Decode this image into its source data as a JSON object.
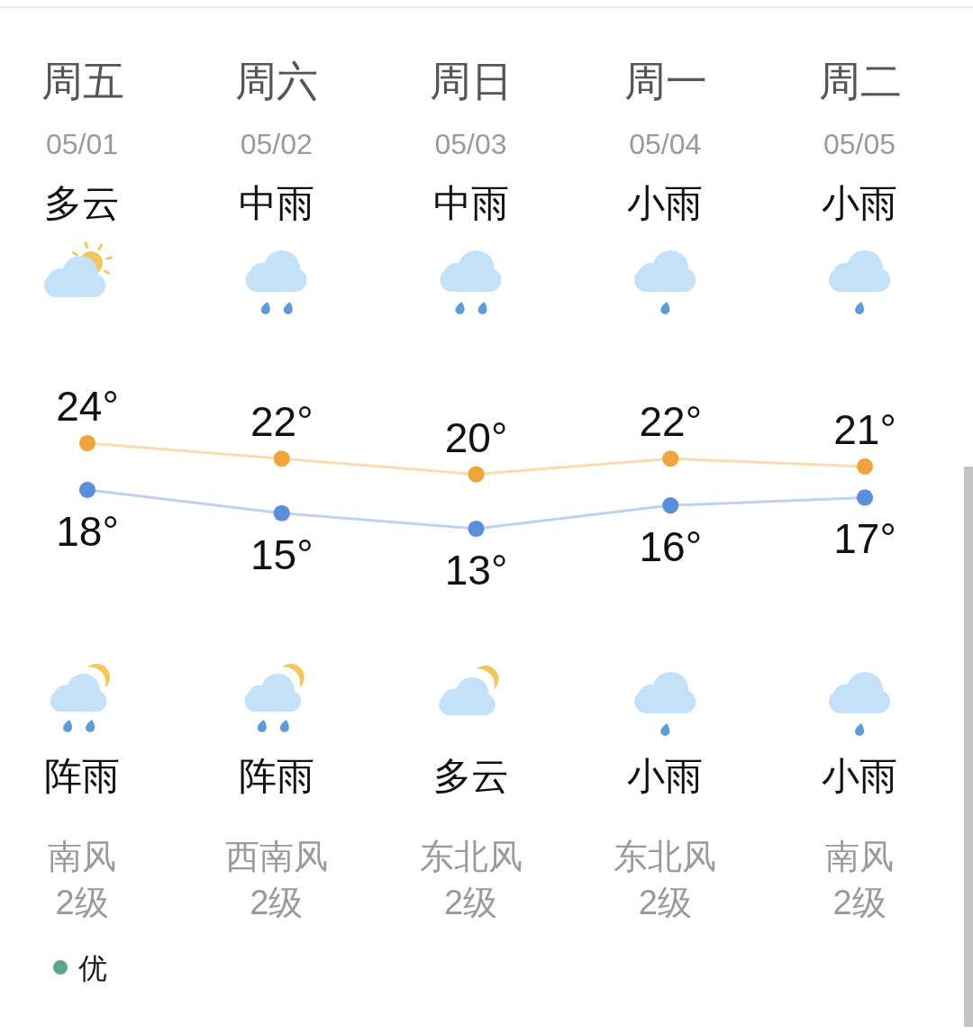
{
  "chart_data": {
    "type": "line",
    "categories": [
      "周五",
      "周六",
      "周日",
      "周一",
      "周二"
    ],
    "series": [
      {
        "color": "#f0a53c",
        "values": [
          24,
          22,
          20,
          22,
          21
        ],
        "value_labels": [
          "24°",
          "22°",
          "20°",
          "22°",
          "21°"
        ]
      },
      {
        "color": "#5b8fdb",
        "values": [
          18,
          15,
          13,
          16,
          17
        ],
        "value_labels": [
          "18°",
          "15°",
          "13°",
          "16°",
          "17°"
        ]
      }
    ],
    "marker": "circle",
    "line_style": "solid",
    "tick_labels": "x",
    "annotations": [
      "05/01",
      "05/02",
      "05/03",
      "05/04",
      "05/05",
      "多云",
      "中雨",
      "中雨",
      "小雨",
      "小雨",
      "阵雨",
      "阵雨",
      "多云",
      "小雨",
      "小雨",
      "南风",
      "西南风",
      "东北风",
      "东北风",
      "南风",
      "2级",
      "2级",
      "2级",
      "2级",
      "2级",
      "优"
    ]
  }
}
